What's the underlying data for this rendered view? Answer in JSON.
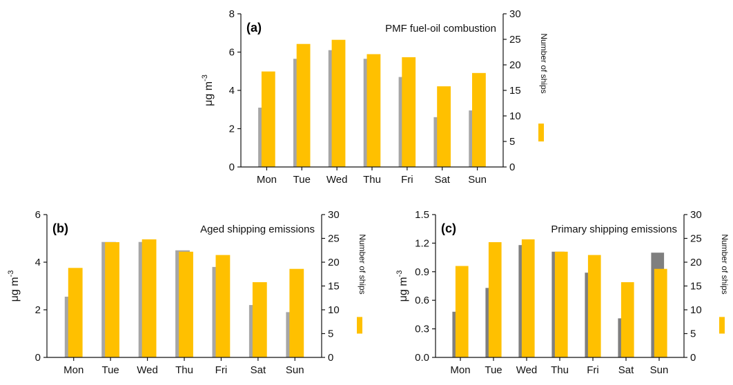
{
  "chart_data": [
    {
      "type": "bar",
      "panel": "(a)",
      "title": "PMF fuel-oil combustion",
      "ylabel_base": "μg m",
      "ylabel_exp": "-3",
      "y2label": "Number of ships",
      "categories": [
        "Mon",
        "Tue",
        "Wed",
        "Thu",
        "Fri",
        "Sat",
        "Sun"
      ],
      "ylim": [
        0,
        8
      ],
      "yticks": [
        "0",
        "2",
        "4",
        "6",
        "8"
      ],
      "y2lim": [
        0,
        30
      ],
      "y2ticks": [
        "0",
        "5",
        "10",
        "15",
        "20",
        "25",
        "30"
      ],
      "series": [
        {
          "axis": "left",
          "color": "#a6a6a6",
          "values": [
            3.1,
            5.65,
            6.1,
            5.65,
            4.7,
            2.6,
            2.95
          ]
        },
        {
          "axis": "right",
          "color": "#ffc000",
          "values": [
            18.7,
            24.1,
            24.9,
            22.1,
            21.5,
            15.8,
            18.4
          ]
        }
      ]
    },
    {
      "type": "bar",
      "panel": "(b)",
      "title": "Aged shipping emissions",
      "ylabel_base": "μg m",
      "ylabel_exp": "-3",
      "y2label": "Number of ships",
      "categories": [
        "Mon",
        "Tue",
        "Wed",
        "Thu",
        "Fri",
        "Sat",
        "Sun"
      ],
      "ylim": [
        0,
        6
      ],
      "yticks": [
        "0",
        "2",
        "4",
        "6"
      ],
      "y2lim": [
        0,
        30
      ],
      "y2ticks": [
        "0",
        "5",
        "10",
        "15",
        "20",
        "25",
        "30"
      ],
      "series": [
        {
          "axis": "left",
          "color": "#a6a6a6",
          "values": [
            2.55,
            4.85,
            4.85,
            4.5,
            3.8,
            2.2,
            1.9
          ]
        },
        {
          "axis": "right",
          "color": "#ffc000",
          "values": [
            18.8,
            24.2,
            24.8,
            22.2,
            21.5,
            15.8,
            18.6
          ]
        }
      ]
    },
    {
      "type": "bar",
      "panel": "(c)",
      "title": "Primary shipping emissions",
      "ylabel_base": "μg m",
      "ylabel_exp": "-3",
      "y2label": "Number of ships",
      "categories": [
        "Mon",
        "Tue",
        "Wed",
        "Thu",
        "Fri",
        "Sat",
        "Sun"
      ],
      "ylim": [
        0,
        1.5
      ],
      "yticks": [
        "0.0",
        "0.3",
        "0.6",
        "0.9",
        "1.2",
        "1.5"
      ],
      "y2lim": [
        0,
        30
      ],
      "y2ticks": [
        "0",
        "5",
        "10",
        "15",
        "20",
        "25",
        "30"
      ],
      "series": [
        {
          "axis": "left",
          "color": "#7f7f7f",
          "values": [
            0.48,
            0.73,
            1.18,
            1.11,
            0.89,
            0.41,
            1.1
          ]
        },
        {
          "axis": "right",
          "color": "#ffc000",
          "values": [
            19.2,
            24.2,
            24.8,
            22.2,
            21.5,
            15.8,
            18.6
          ]
        }
      ]
    }
  ]
}
